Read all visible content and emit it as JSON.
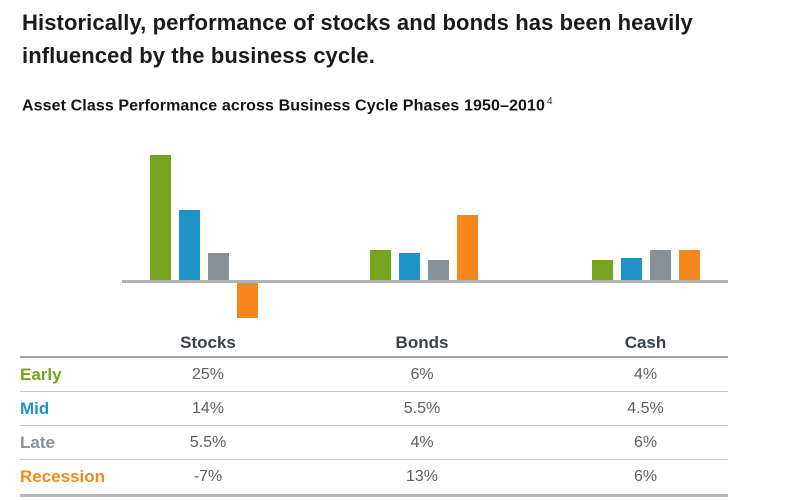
{
  "header": {
    "headline": "Historically, performance of stocks and bonds has been heavily influenced by the business cycle.",
    "subtitle": "Asset Class Performance across Business Cycle Phases 1950–2010",
    "footnote_marker": "4"
  },
  "colors": {
    "early": "#76A21E",
    "mid": "#1E94C8",
    "late": "#87919A",
    "recession": "#F6871F",
    "baseline": "#B2B2B2",
    "value_text": "#5A6065",
    "column_header_text": "#39424A",
    "headline_text": "#1A1A1A"
  },
  "chart_data": {
    "type": "bar",
    "title": "Asset Class Performance across Business Cycle Phases 1950–2010",
    "categories": [
      "Stocks",
      "Bonds",
      "Cash"
    ],
    "series": [
      {
        "name": "Early",
        "color_key": "early",
        "values": [
          25,
          6,
          4
        ]
      },
      {
        "name": "Mid",
        "color_key": "mid",
        "values": [
          14,
          5.5,
          4.5
        ]
      },
      {
        "name": "Late",
        "color_key": "late",
        "values": [
          5.5,
          4,
          6
        ]
      },
      {
        "name": "Recession",
        "color_key": "recession",
        "values": [
          -7,
          13,
          6
        ]
      }
    ],
    "unit": "%",
    "ylim": [
      -7,
      25
    ],
    "grid": false,
    "axis_labels_visible": false,
    "legend_position": "table-row-labels"
  },
  "table": {
    "columns": [
      "Stocks",
      "Bonds",
      "Cash"
    ],
    "rows": [
      {
        "label": "Early",
        "color_key": "early",
        "values": [
          "25%",
          "6%",
          "4%"
        ]
      },
      {
        "label": "Mid",
        "color_key": "mid",
        "values": [
          "14%",
          "5.5%",
          "4.5%"
        ]
      },
      {
        "label": "Late",
        "color_key": "late",
        "values": [
          "5.5%",
          "4%",
          "6%"
        ]
      },
      {
        "label": "Recession",
        "color_key": "recession",
        "values": [
          "-7%",
          "13%",
          "6%"
        ]
      }
    ]
  }
}
